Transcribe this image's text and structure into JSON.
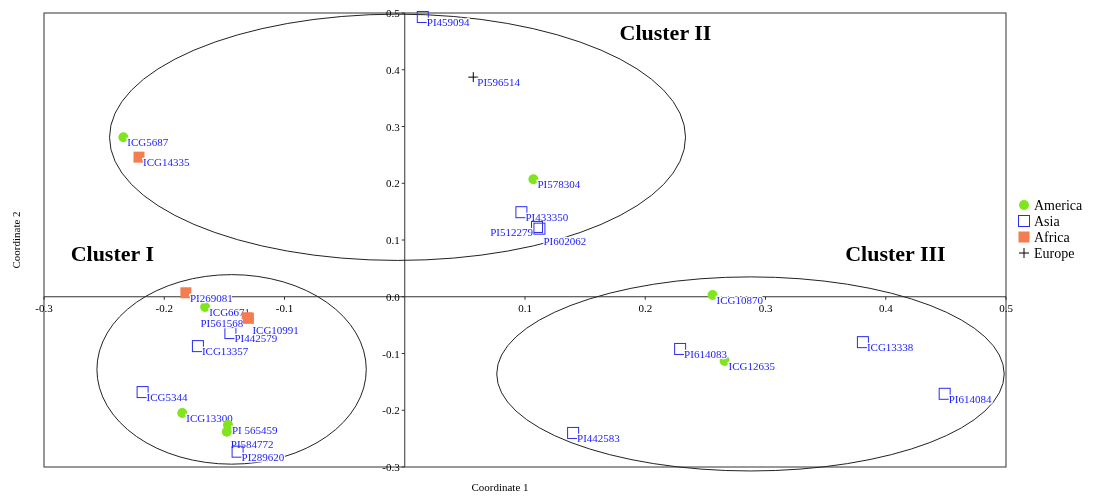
{
  "chart_data": {
    "type": "scatter",
    "xlabel": "Coordinate 1",
    "ylabel": "Coordinate 2",
    "xlim": [
      -0.3,
      0.5
    ],
    "ylim": [
      -0.3,
      0.5
    ],
    "xticks": [
      -0.3,
      -0.2,
      -0.1,
      0.1,
      0.2,
      0.3,
      0.4,
      0.5
    ],
    "yticks": [
      -0.3,
      -0.2,
      -0.1,
      {
        "value": 0,
        "label": "0.0"
      },
      0.1,
      0.2,
      0.3,
      0.4,
      0.5
    ],
    "grid": false,
    "legend": "right",
    "annotations": [
      "Cluster I",
      "Cluster II",
      "Cluster III"
    ],
    "series": [
      {
        "name": "America",
        "color": "#7fe61e",
        "marker": "circle",
        "x": [
          -0.234,
          0.107,
          -0.166,
          -0.185,
          -0.147,
          -0.148,
          0.256,
          0.266
        ],
        "values": [
          0.281,
          0.207,
          -0.018,
          -0.205,
          -0.226,
          -0.238,
          0.003,
          -0.113
        ],
        "value_labels": [
          "ICG5687",
          "PI578304",
          "ICG6671",
          "ICG13300",
          "PI 565459",
          "PI584772",
          "ICG10870",
          "ICG12635"
        ]
      },
      {
        "name": "Asia",
        "color": "#2b2bf0",
        "marker": "square",
        "x": [
          0.015,
          0.097,
          0.11,
          0.112,
          -0.145,
          -0.172,
          -0.218,
          -0.139,
          0.229,
          0.381,
          0.449,
          0.14
        ],
        "values": [
          0.493,
          0.149,
          0.123,
          0.12,
          -0.064,
          -0.087,
          -0.168,
          -0.273,
          -0.092,
          -0.08,
          -0.171,
          -0.24
        ],
        "value_labels": [
          "PI459094",
          "PI433350",
          "PI512279",
          "PI602062",
          "PI442579",
          "ICG13357",
          "ICG5344",
          "PI289620",
          "PI614083",
          "ICG13338",
          "PI614084",
          "PI442583"
        ]
      },
      {
        "name": "Africa",
        "color": "#f47c50",
        "marker": "square",
        "x": [
          -0.221,
          -0.182,
          -0.131,
          -0.13
        ],
        "values": [
          0.246,
          0.007,
          -0.037,
          -0.038
        ],
        "value_labels": [
          "ICG14335",
          "PI269081",
          "PI561568",
          "ICG10991"
        ]
      },
      {
        "name": "Europe",
        "color": "#000000",
        "marker": "cross",
        "x": [
          0.057
        ],
        "values": [
          0.387
        ],
        "value_labels": [
          "PI596514"
        ]
      }
    ]
  }
}
